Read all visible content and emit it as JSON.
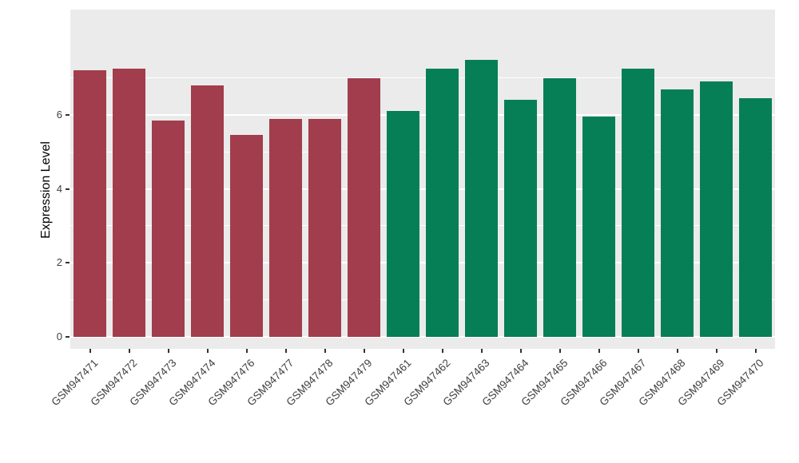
{
  "chart_data": {
    "type": "bar",
    "title": "",
    "ylabel": "Expression Level",
    "xlabel": "",
    "categories": [
      "GSM947471",
      "GSM947472",
      "GSM947473",
      "GSM947474",
      "GSM947476",
      "GSM947477",
      "GSM947478",
      "GSM947479",
      "GSM947461",
      "GSM947462",
      "GSM947463",
      "GSM947464",
      "GSM947465",
      "GSM947466",
      "GSM947467",
      "GSM947468",
      "GSM947469",
      "GSM947470"
    ],
    "values": [
      7.2,
      7.25,
      5.85,
      6.8,
      5.45,
      5.9,
      5.9,
      7.0,
      6.1,
      7.25,
      7.5,
      6.4,
      7.0,
      5.95,
      7.25,
      6.7,
      6.9,
      6.45
    ],
    "groups": [
      "left",
      "left",
      "left",
      "left",
      "left",
      "left",
      "left",
      "left",
      "right",
      "right",
      "right",
      "right",
      "right",
      "right",
      "right",
      "right",
      "right",
      "right"
    ],
    "group_colors": {
      "left": "#A13D4C",
      "right": "#067F56"
    },
    "yticks": [
      0,
      2,
      4,
      6
    ],
    "minor_ticks": [
      1,
      3,
      5,
      7
    ],
    "ylim": [
      -0.33,
      8.85
    ],
    "panel_background": "#EBEBEB",
    "grid_color": "#FFFFFF",
    "axis_text_color": "#404040",
    "legend": "none",
    "grid": "on"
  }
}
